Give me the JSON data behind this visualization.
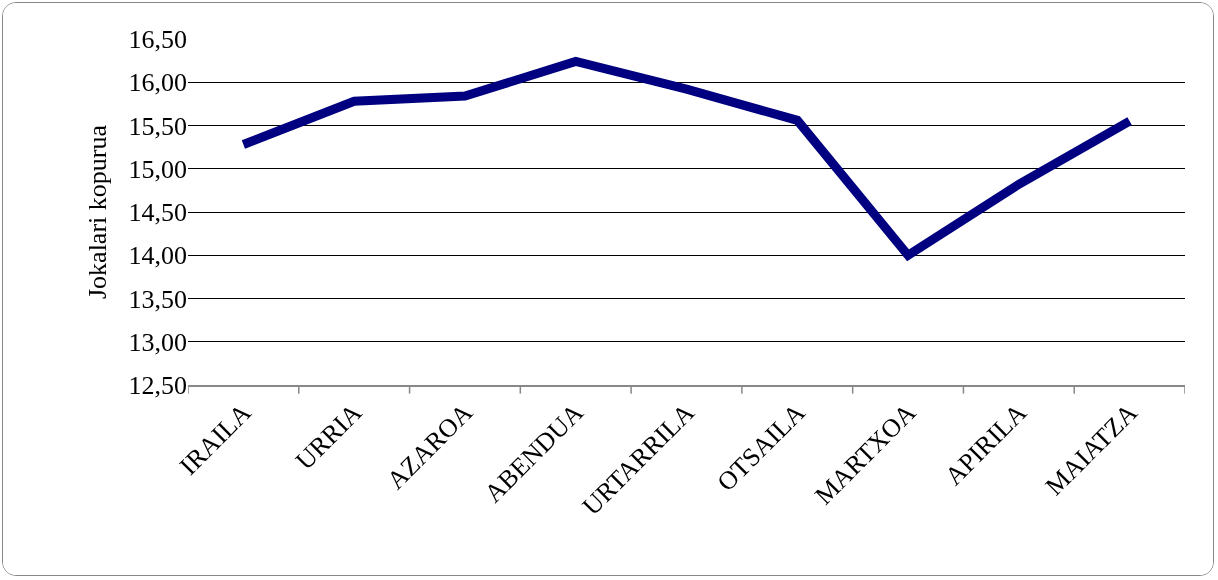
{
  "chart_data": {
    "type": "line",
    "ylabel": "Jokalari kopurua",
    "categories": [
      "IRAILA",
      "URRIA",
      "AZAROA",
      "ABENDUA",
      "URTARRILA",
      "OTSAILA",
      "MARTXOA",
      "APIRILA",
      "MAIATZA"
    ],
    "series": [
      {
        "color": "#000080",
        "values": [
          15.28,
          15.78,
          15.84,
          16.24,
          15.92,
          15.56,
          14.0,
          14.82,
          15.55
        ]
      }
    ],
    "ylim": [
      12.5,
      16.5
    ],
    "yticks": [
      {
        "value": 12.5,
        "label": "12,50"
      },
      {
        "value": 13,
        "label": "13,00"
      },
      {
        "value": 13.5,
        "label": "13,50"
      },
      {
        "value": 14,
        "label": "14,00"
      },
      {
        "value": 14.5,
        "label": "14,50"
      },
      {
        "value": 15,
        "label": "15,00"
      },
      {
        "value": 15.5,
        "label": "15,50"
      },
      {
        "value": 16,
        "label": "16,00"
      },
      {
        "value": 16.5,
        "label": "16,50"
      }
    ],
    "grid": "y",
    "legend": false,
    "marker": "none",
    "line_style": "solid"
  }
}
